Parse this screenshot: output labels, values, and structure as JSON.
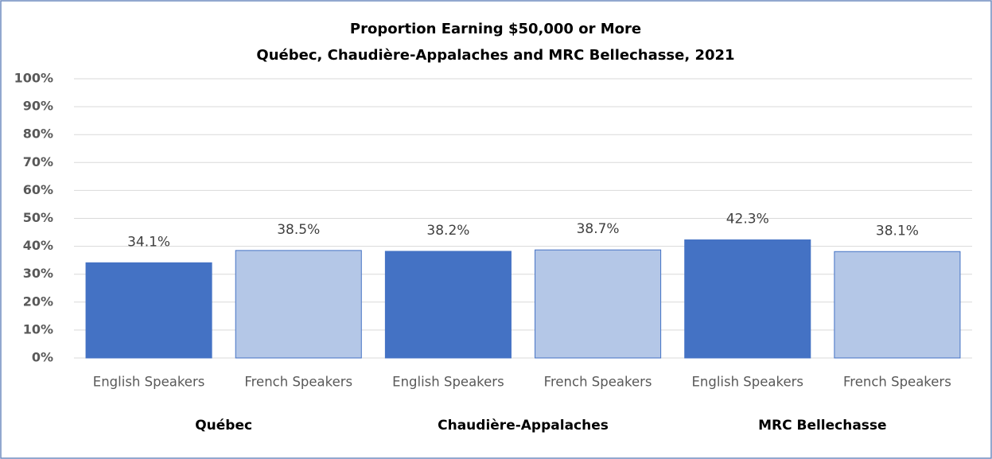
{
  "chart_data": {
    "type": "bar",
    "title": "Proportion Earning $50,000 or More",
    "subtitle": "Québec, Chaudière-Appalaches and MRC Bellechasse, 2021",
    "categories": [
      "English Speakers",
      "French Speakers",
      "English Speakers",
      "French Speakers",
      "English Speakers",
      "French Speakers"
    ],
    "groups": [
      "Québec",
      "Chaudière-Appalaches",
      "MRC Bellechasse"
    ],
    "values": [
      34.1,
      38.5,
      38.2,
      38.7,
      42.3,
      38.1
    ],
    "value_labels": [
      "34.1%",
      "38.5%",
      "38.2%",
      "38.7%",
      "42.3%",
      "38.1%"
    ],
    "colors": [
      "#4472c4",
      "#b4c7e7",
      "#4472c4",
      "#b4c7e7",
      "#4472c4",
      "#b4c7e7"
    ],
    "ylim": [
      0,
      100
    ],
    "yticks": [
      {
        "value": 0,
        "label": "0%"
      },
      {
        "value": 10,
        "label": "10%"
      },
      {
        "value": 20,
        "label": "20%"
      },
      {
        "value": 30,
        "label": "30%"
      },
      {
        "value": 40,
        "label": "40%"
      },
      {
        "value": 50,
        "label": "50%"
      },
      {
        "value": 60,
        "label": "60%"
      },
      {
        "value": 70,
        "label": "70%"
      },
      {
        "value": 80,
        "label": "80%"
      },
      {
        "value": 90,
        "label": "90%"
      },
      {
        "value": 100,
        "label": "100%"
      }
    ],
    "grid": true
  }
}
